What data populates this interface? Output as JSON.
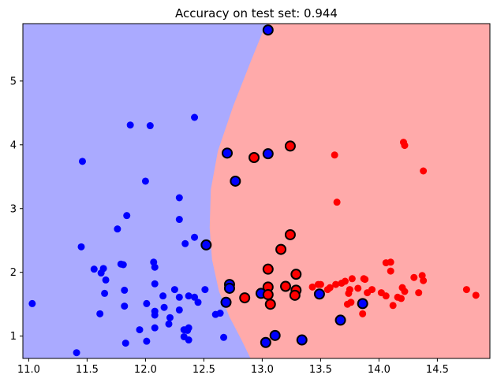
{
  "chart_data": {
    "type": "scatter",
    "title": "Accuracy on test set: 0.944",
    "xlabel": "",
    "ylabel": "",
    "xlim": [
      10.95,
      14.95
    ],
    "ylim": [
      0.65,
      5.9
    ],
    "x_ticks": [
      11.0,
      11.5,
      12.0,
      12.5,
      13.0,
      13.5,
      14.0,
      14.5
    ],
    "x_tick_labels": [
      "11.0",
      "11.5",
      "12.0",
      "12.5",
      "13.0",
      "13.5",
      "14.0",
      "14.5"
    ],
    "y_ticks": [
      1,
      2,
      3,
      4,
      5
    ],
    "y_tick_labels": [
      "1",
      "2",
      "3",
      "4",
      "5"
    ],
    "grid": false,
    "colors": {
      "class_0": "#0000ff",
      "class_1": "#ff0000",
      "region_0": "#aaaaff",
      "region_1": "#ffaaaa",
      "test_edge": "#000000"
    },
    "decision_boundary": [
      [
        13.05,
        5.9
      ],
      [
        13.0,
        5.75
      ],
      [
        12.9,
        5.3
      ],
      [
        12.75,
        4.6
      ],
      [
        12.62,
        3.9
      ],
      [
        12.56,
        3.3
      ],
      [
        12.55,
        2.7
      ],
      [
        12.57,
        2.2
      ],
      [
        12.63,
        1.7
      ],
      [
        12.72,
        1.3
      ],
      [
        12.82,
        0.95
      ],
      [
        12.9,
        0.65
      ]
    ],
    "train": [
      {
        "x": 11.03,
        "y": 1.51,
        "label": 0
      },
      {
        "x": 11.41,
        "y": 0.74,
        "label": 0
      },
      {
        "x": 11.45,
        "y": 2.4,
        "label": 0
      },
      {
        "x": 11.46,
        "y": 3.74,
        "label": 0
      },
      {
        "x": 11.56,
        "y": 2.05,
        "label": 0
      },
      {
        "x": 11.61,
        "y": 1.35,
        "label": 0
      },
      {
        "x": 11.62,
        "y": 1.99,
        "label": 0
      },
      {
        "x": 11.64,
        "y": 2.06,
        "label": 0
      },
      {
        "x": 11.65,
        "y": 1.67,
        "label": 0
      },
      {
        "x": 11.66,
        "y": 1.88,
        "label": 0
      },
      {
        "x": 11.76,
        "y": 2.68,
        "label": 0
      },
      {
        "x": 11.79,
        "y": 2.13,
        "label": 0
      },
      {
        "x": 11.81,
        "y": 2.12,
        "label": 0
      },
      {
        "x": 11.82,
        "y": 1.47,
        "label": 0
      },
      {
        "x": 11.82,
        "y": 1.72,
        "label": 0
      },
      {
        "x": 11.83,
        "y": 0.89,
        "label": 0
      },
      {
        "x": 11.84,
        "y": 2.89,
        "label": 0
      },
      {
        "x": 11.87,
        "y": 4.31,
        "label": 0
      },
      {
        "x": 11.95,
        "y": 1.1,
        "label": 0
      },
      {
        "x": 12.0,
        "y": 3.43,
        "label": 0
      },
      {
        "x": 12.01,
        "y": 1.51,
        "label": 0
      },
      {
        "x": 12.01,
        "y": 0.92,
        "label": 0
      },
      {
        "x": 12.04,
        "y": 4.3,
        "label": 0
      },
      {
        "x": 12.07,
        "y": 2.16,
        "label": 0
      },
      {
        "x": 12.08,
        "y": 2.08,
        "label": 0
      },
      {
        "x": 12.08,
        "y": 1.82,
        "label": 0
      },
      {
        "x": 12.08,
        "y": 1.39,
        "label": 0
      },
      {
        "x": 12.08,
        "y": 1.33,
        "label": 0
      },
      {
        "x": 12.08,
        "y": 1.13,
        "label": 0
      },
      {
        "x": 12.15,
        "y": 1.63,
        "label": 0
      },
      {
        "x": 12.16,
        "y": 1.45,
        "label": 0
      },
      {
        "x": 12.2,
        "y": 1.19,
        "label": 0
      },
      {
        "x": 12.21,
        "y": 1.29,
        "label": 0
      },
      {
        "x": 12.25,
        "y": 1.73,
        "label": 0
      },
      {
        "x": 12.29,
        "y": 3.17,
        "label": 0
      },
      {
        "x": 12.29,
        "y": 2.83,
        "label": 0
      },
      {
        "x": 12.29,
        "y": 1.61,
        "label": 0
      },
      {
        "x": 12.29,
        "y": 1.41,
        "label": 0
      },
      {
        "x": 12.33,
        "y": 0.99,
        "label": 0
      },
      {
        "x": 12.33,
        "y": 1.1,
        "label": 0
      },
      {
        "x": 12.34,
        "y": 2.45,
        "label": 0
      },
      {
        "x": 12.36,
        "y": 1.09,
        "label": 0
      },
      {
        "x": 12.37,
        "y": 1.63,
        "label": 0
      },
      {
        "x": 12.37,
        "y": 1.13,
        "label": 0
      },
      {
        "x": 12.37,
        "y": 0.94,
        "label": 0
      },
      {
        "x": 12.42,
        "y": 4.43,
        "label": 0
      },
      {
        "x": 12.42,
        "y": 2.55,
        "label": 0
      },
      {
        "x": 12.42,
        "y": 1.61,
        "label": 0
      },
      {
        "x": 12.45,
        "y": 1.53,
        "label": 0
      },
      {
        "x": 12.51,
        "y": 1.73,
        "label": 0
      },
      {
        "x": 12.6,
        "y": 1.34,
        "label": 0
      },
      {
        "x": 12.64,
        "y": 1.36,
        "label": 0
      },
      {
        "x": 12.67,
        "y": 0.98,
        "label": 0
      },
      {
        "x": 13.43,
        "y": 1.77,
        "label": 1
      },
      {
        "x": 13.48,
        "y": 1.81,
        "label": 1
      },
      {
        "x": 13.49,
        "y": 1.66,
        "label": 1
      },
      {
        "x": 13.5,
        "y": 1.81,
        "label": 1
      },
      {
        "x": 13.56,
        "y": 1.73,
        "label": 1
      },
      {
        "x": 13.58,
        "y": 1.76,
        "label": 1
      },
      {
        "x": 13.62,
        "y": 3.84,
        "label": 1
      },
      {
        "x": 13.63,
        "y": 1.81,
        "label": 1
      },
      {
        "x": 13.64,
        "y": 3.1,
        "label": 1
      },
      {
        "x": 13.68,
        "y": 1.83,
        "label": 1
      },
      {
        "x": 13.71,
        "y": 1.86,
        "label": 1
      },
      {
        "x": 13.73,
        "y": 1.5,
        "label": 1
      },
      {
        "x": 13.74,
        "y": 1.67,
        "label": 1
      },
      {
        "x": 13.75,
        "y": 1.73,
        "label": 1
      },
      {
        "x": 13.76,
        "y": 1.53,
        "label": 1
      },
      {
        "x": 13.77,
        "y": 1.9,
        "label": 1
      },
      {
        "x": 13.82,
        "y": 1.75,
        "label": 1
      },
      {
        "x": 13.86,
        "y": 1.35,
        "label": 1
      },
      {
        "x": 13.87,
        "y": 1.9,
        "label": 1
      },
      {
        "x": 13.88,
        "y": 1.89,
        "label": 1
      },
      {
        "x": 13.9,
        "y": 1.68,
        "label": 1
      },
      {
        "x": 13.94,
        "y": 1.73,
        "label": 1
      },
      {
        "x": 14.02,
        "y": 1.68,
        "label": 1
      },
      {
        "x": 14.06,
        "y": 2.15,
        "label": 1
      },
      {
        "x": 14.06,
        "y": 1.63,
        "label": 1
      },
      {
        "x": 14.1,
        "y": 2.16,
        "label": 1
      },
      {
        "x": 14.1,
        "y": 2.02,
        "label": 1
      },
      {
        "x": 14.12,
        "y": 1.48,
        "label": 1
      },
      {
        "x": 14.16,
        "y": 1.61,
        "label": 1
      },
      {
        "x": 14.19,
        "y": 1.59,
        "label": 1
      },
      {
        "x": 14.2,
        "y": 1.76,
        "label": 1
      },
      {
        "x": 14.21,
        "y": 4.04,
        "label": 1
      },
      {
        "x": 14.22,
        "y": 3.99,
        "label": 1
      },
      {
        "x": 14.22,
        "y": 1.7,
        "label": 1
      },
      {
        "x": 14.3,
        "y": 1.92,
        "label": 1
      },
      {
        "x": 14.34,
        "y": 1.68,
        "label": 1
      },
      {
        "x": 14.37,
        "y": 1.95,
        "label": 1
      },
      {
        "x": 14.38,
        "y": 1.87,
        "label": 1
      },
      {
        "x": 14.38,
        "y": 3.59,
        "label": 1
      },
      {
        "x": 14.75,
        "y": 1.73,
        "label": 1
      },
      {
        "x": 14.83,
        "y": 1.64,
        "label": 1
      }
    ],
    "test": [
      {
        "x": 13.05,
        "y": 5.8,
        "label": 0
      },
      {
        "x": 12.7,
        "y": 3.87,
        "label": 0
      },
      {
        "x": 13.05,
        "y": 3.86,
        "label": 0
      },
      {
        "x": 12.77,
        "y": 3.43,
        "label": 0
      },
      {
        "x": 12.52,
        "y": 2.43,
        "label": 0
      },
      {
        "x": 12.72,
        "y": 1.81,
        "label": 0
      },
      {
        "x": 12.72,
        "y": 1.75,
        "label": 0
      },
      {
        "x": 12.69,
        "y": 1.53,
        "label": 0
      },
      {
        "x": 12.99,
        "y": 1.67,
        "label": 0
      },
      {
        "x": 13.49,
        "y": 1.66,
        "label": 0
      },
      {
        "x": 13.86,
        "y": 1.51,
        "label": 0
      },
      {
        "x": 13.67,
        "y": 1.25,
        "label": 0
      },
      {
        "x": 13.11,
        "y": 1.01,
        "label": 0
      },
      {
        "x": 13.03,
        "y": 0.9,
        "label": 0
      },
      {
        "x": 13.34,
        "y": 0.94,
        "label": 0
      },
      {
        "x": 12.93,
        "y": 3.8,
        "label": 1
      },
      {
        "x": 13.24,
        "y": 3.98,
        "label": 1
      },
      {
        "x": 13.24,
        "y": 2.59,
        "label": 1
      },
      {
        "x": 13.16,
        "y": 2.36,
        "label": 1
      },
      {
        "x": 13.05,
        "y": 2.05,
        "label": 1
      },
      {
        "x": 13.29,
        "y": 1.97,
        "label": 1
      },
      {
        "x": 13.05,
        "y": 1.77,
        "label": 1
      },
      {
        "x": 13.2,
        "y": 1.78,
        "label": 1
      },
      {
        "x": 13.29,
        "y": 1.72,
        "label": 1
      },
      {
        "x": 13.28,
        "y": 1.64,
        "label": 1
      },
      {
        "x": 13.05,
        "y": 1.65,
        "label": 1
      },
      {
        "x": 12.85,
        "y": 1.6,
        "label": 1
      },
      {
        "x": 13.07,
        "y": 1.5,
        "label": 1
      }
    ]
  }
}
